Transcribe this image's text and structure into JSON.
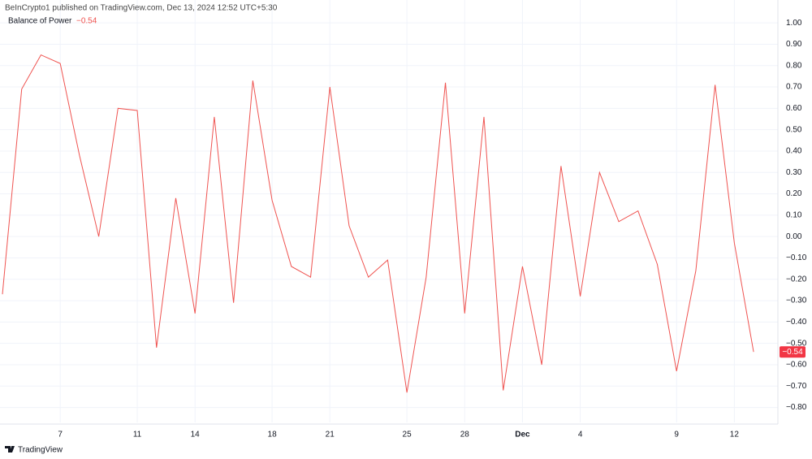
{
  "header": "BeInCrypto1 published on TradingView.com, Dec 13, 2024 12:52 UTC+5:30",
  "footer": "TradingView",
  "chart_data": {
    "type": "line",
    "title": "Balance of Power",
    "legend_value_label": "−0.54",
    "last_value_tag": "−0.54",
    "categories": [
      null,
      null,
      null,
      "7",
      null,
      null,
      null,
      "11",
      null,
      null,
      "14",
      null,
      null,
      null,
      "18",
      null,
      null,
      "21",
      null,
      null,
      null,
      "25",
      null,
      null,
      "28",
      null,
      null,
      "Dec",
      null,
      null,
      "4",
      null,
      null,
      null,
      null,
      "9",
      null,
      null,
      "12",
      null
    ],
    "series": [
      {
        "name": "Balance of Power",
        "color": "#ef5350",
        "values": [
          -0.27,
          0.69,
          0.85,
          0.81,
          0.38,
          0.0,
          0.6,
          0.59,
          -0.52,
          0.18,
          -0.36,
          0.56,
          -0.31,
          0.73,
          0.17,
          -0.14,
          -0.19,
          0.7,
          0.05,
          -0.19,
          -0.11,
          -0.73,
          -0.19,
          0.72,
          -0.36,
          0.56,
          -0.72,
          -0.14,
          -0.6,
          0.33,
          -0.28,
          0.3,
          0.07,
          0.12,
          -0.13,
          -0.63,
          -0.16,
          0.71,
          -0.03,
          -0.54
        ]
      }
    ],
    "ylim": [
      -0.87,
      1.05
    ],
    "yticks": [
      {
        "value": 1.0,
        "label": "1.00"
      },
      {
        "value": 0.9,
        "label": "0.90"
      },
      {
        "value": 0.8,
        "label": "0.80"
      },
      {
        "value": 0.7,
        "label": "0.70"
      },
      {
        "value": 0.6,
        "label": "0.60"
      },
      {
        "value": 0.5,
        "label": "0.50"
      },
      {
        "value": 0.4,
        "label": "0.40"
      },
      {
        "value": 0.3,
        "label": "0.30"
      },
      {
        "value": 0.2,
        "label": "0.20"
      },
      {
        "value": 0.1,
        "label": "0.10"
      },
      {
        "value": 0,
        "label": "0.00"
      },
      {
        "value": -0.1,
        "label": "−0.10"
      },
      {
        "value": -0.2,
        "label": "−0.20"
      },
      {
        "value": -0.3,
        "label": "−0.30"
      },
      {
        "value": -0.4,
        "label": "−0.40"
      },
      {
        "value": -0.5,
        "label": "−0.50"
      },
      {
        "value": -0.6,
        "label": "−0.60"
      },
      {
        "value": -0.7,
        "label": "−0.70"
      },
      {
        "value": -0.8,
        "label": "−0.80"
      }
    ],
    "grid": true,
    "tag_color": "#f23645"
  }
}
